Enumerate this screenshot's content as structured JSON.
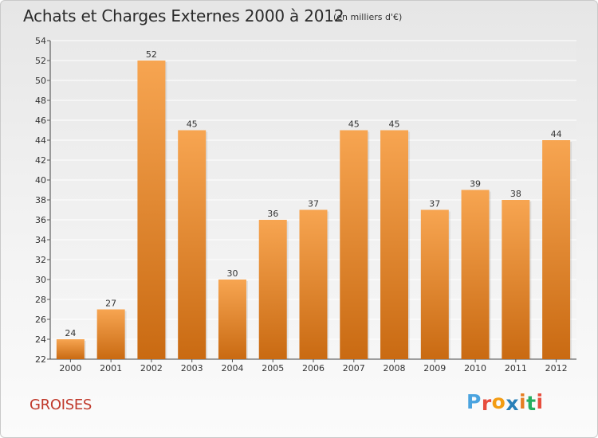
{
  "chart_data": {
    "type": "bar",
    "title": "Achats et Charges Externes 2000 à 2012",
    "subtitle": "(en milliers d'€)",
    "categories": [
      "2000",
      "2001",
      "2002",
      "2003",
      "2004",
      "2005",
      "2006",
      "2007",
      "2008",
      "2009",
      "2010",
      "2011",
      "2012"
    ],
    "values": [
      24,
      27,
      52,
      45,
      30,
      36,
      37,
      45,
      45,
      37,
      39,
      38,
      44
    ],
    "ylim": [
      22,
      54
    ],
    "yticks": [
      22,
      24,
      26,
      28,
      30,
      32,
      34,
      36,
      38,
      40,
      42,
      44,
      46,
      48,
      50,
      52,
      54
    ],
    "grid": true,
    "bar_color_top": "#f7a551",
    "bar_color_bottom": "#c96a12"
  },
  "footer": {
    "place": "GROISES",
    "logo_letters": [
      "P",
      "r",
      "o",
      "x",
      "i",
      "t",
      "i"
    ],
    "logo_colors": [
      "#4aa3df",
      "#e74c3c",
      "#f39c12",
      "#2980b9",
      "#e67e22",
      "#27ae60",
      "#e74c3c"
    ]
  }
}
